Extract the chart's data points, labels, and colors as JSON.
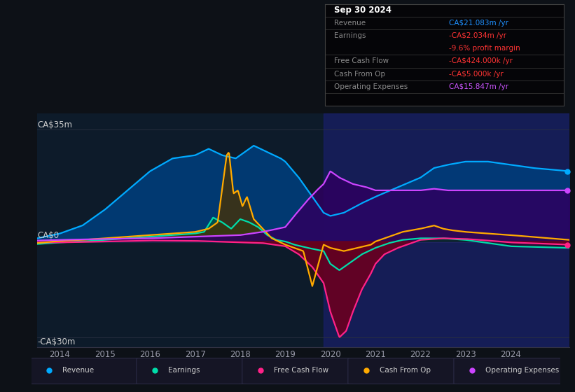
{
  "title": "Sep 30 2024",
  "bg_color": "#0d1117",
  "plot_bg_color": "#0d1b2a",
  "y_label_top": "CA$35m",
  "y_label_zero": "CA$0",
  "y_label_bottom": "-CA$30m",
  "ylim": [
    -33,
    40
  ],
  "xlim": [
    2013.5,
    2025.3
  ],
  "x_ticks": [
    2014,
    2015,
    2016,
    2017,
    2018,
    2019,
    2020,
    2021,
    2022,
    2023,
    2024
  ],
  "info_box": {
    "title": "Sep 30 2024",
    "rows": [
      {
        "label": "Revenue",
        "value": "CA$21.083m /yr",
        "value_color": "#1e90ff"
      },
      {
        "label": "Earnings",
        "value": "-CA$2.034m /yr",
        "value_color": "#ff3333"
      },
      {
        "label": "",
        "value": "-9.6% profit margin",
        "value_color": "#ff3333"
      },
      {
        "label": "Free Cash Flow",
        "value": "-CA$424.000k /yr",
        "value_color": "#ff3333"
      },
      {
        "label": "Cash From Op",
        "value": "-CA$5.000k /yr",
        "value_color": "#ff3333"
      },
      {
        "label": "Operating Expenses",
        "value": "CA$15.847m /yr",
        "value_color": "#cc55ff"
      }
    ]
  },
  "series": {
    "revenue": {
      "color": "#00aaff",
      "label": "Revenue"
    },
    "earnings": {
      "color": "#00ddaa",
      "label": "Earnings"
    },
    "fcf": {
      "color": "#ff2288",
      "label": "Free Cash Flow"
    },
    "cashfromop": {
      "color": "#ffaa00",
      "label": "Cash From Op"
    },
    "opex": {
      "color": "#cc44ff",
      "label": "Operating Expenses"
    }
  },
  "shaded_region_start": 2019.85,
  "shaded_region_end": 2025.3
}
